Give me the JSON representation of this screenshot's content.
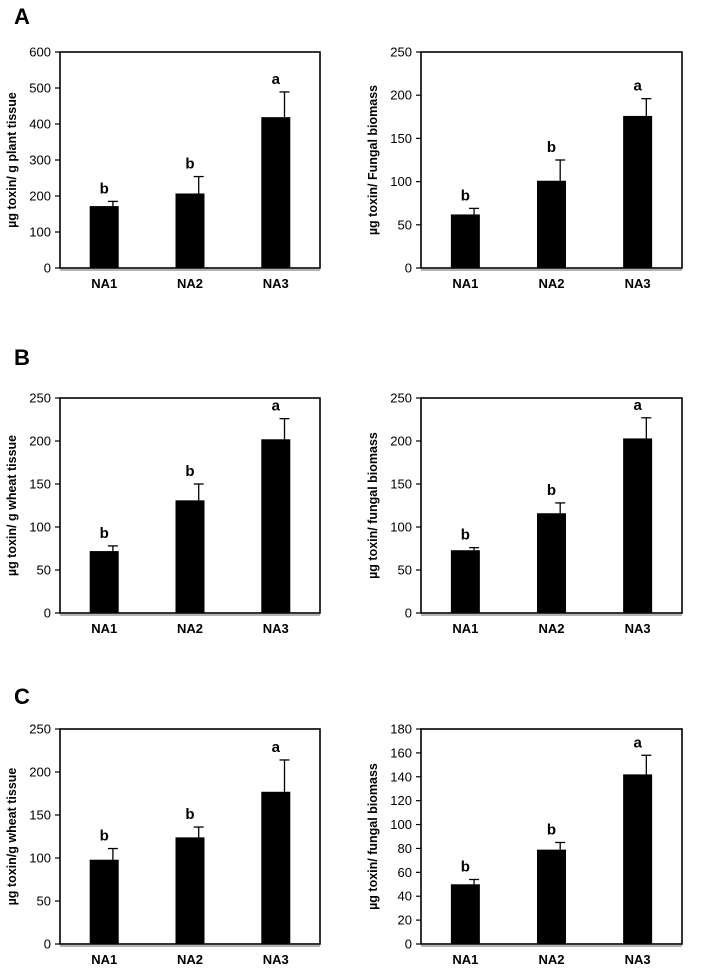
{
  "panels": [
    {
      "letter": "A"
    },
    {
      "letter": "B"
    },
    {
      "letter": "C"
    }
  ],
  "chart_data": [
    {
      "panel": "A",
      "type": "bar",
      "categories": [
        "NA1",
        "NA2",
        "NA3"
      ],
      "values": [
        172,
        207,
        419
      ],
      "errors": [
        13,
        47,
        70
      ],
      "significance": [
        "b",
        "b",
        "a"
      ],
      "ylabel": "µg toxin/ g plant tissue",
      "xlabel": "",
      "title": "",
      "ylim": [
        0,
        600
      ],
      "yticks": [
        0,
        100,
        200,
        300,
        400,
        500,
        600
      ],
      "bar_color": "#000000"
    },
    {
      "panel": "A",
      "type": "bar",
      "categories": [
        "NA1",
        "NA2",
        "NA3"
      ],
      "values": [
        62,
        101,
        176
      ],
      "errors": [
        7,
        24,
        20
      ],
      "significance": [
        "b",
        "b",
        "a"
      ],
      "ylabel": "µg toxin/ Fungal biomass",
      "xlabel": "",
      "title": "",
      "ylim": [
        0,
        250
      ],
      "yticks": [
        0,
        50,
        100,
        150,
        200,
        250
      ],
      "bar_color": "#000000"
    },
    {
      "panel": "B",
      "type": "bar",
      "categories": [
        "NA1",
        "NA2",
        "NA3"
      ],
      "values": [
        72,
        131,
        202
      ],
      "errors": [
        6,
        19,
        24
      ],
      "significance": [
        "b",
        "b",
        "a"
      ],
      "ylabel": "µg toxin/ g wheat tissue",
      "xlabel": "",
      "title": "",
      "ylim": [
        0,
        250
      ],
      "yticks": [
        0,
        50,
        100,
        150,
        200,
        250
      ],
      "bar_color": "#000000"
    },
    {
      "panel": "B",
      "type": "bar",
      "categories": [
        "NA1",
        "NA2",
        "NA3"
      ],
      "values": [
        73,
        116,
        203
      ],
      "errors": [
        3,
        12,
        24
      ],
      "significance": [
        "b",
        "b",
        "a"
      ],
      "ylabel": "µg toxin/ fungal biomass",
      "xlabel": "",
      "title": "",
      "ylim": [
        0,
        250
      ],
      "yticks": [
        0,
        50,
        100,
        150,
        200,
        250
      ],
      "bar_color": "#000000"
    },
    {
      "panel": "C",
      "type": "bar",
      "categories": [
        "NA1",
        "NA2",
        "NA3"
      ],
      "values": [
        98,
        124,
        177
      ],
      "errors": [
        13,
        12,
        37
      ],
      "significance": [
        "b",
        "b",
        "a"
      ],
      "ylabel": "µg toxin/g wheat tissue",
      "xlabel": "",
      "title": "",
      "ylim": [
        0,
        250
      ],
      "yticks": [
        0,
        50,
        100,
        150,
        200,
        250
      ],
      "bar_color": "#000000"
    },
    {
      "panel": "C",
      "type": "bar",
      "categories": [
        "NA1",
        "NA2",
        "NA3"
      ],
      "values": [
        50,
        79,
        142
      ],
      "errors": [
        4,
        6,
        16
      ],
      "significance": [
        "b",
        "b",
        "a"
      ],
      "ylabel": "µg toxin/ fungal biomass",
      "xlabel": "",
      "title": "",
      "ylim": [
        0,
        180
      ],
      "yticks": [
        0,
        20,
        40,
        60,
        80,
        100,
        120,
        140,
        160,
        180
      ],
      "bar_color": "#000000"
    }
  ]
}
